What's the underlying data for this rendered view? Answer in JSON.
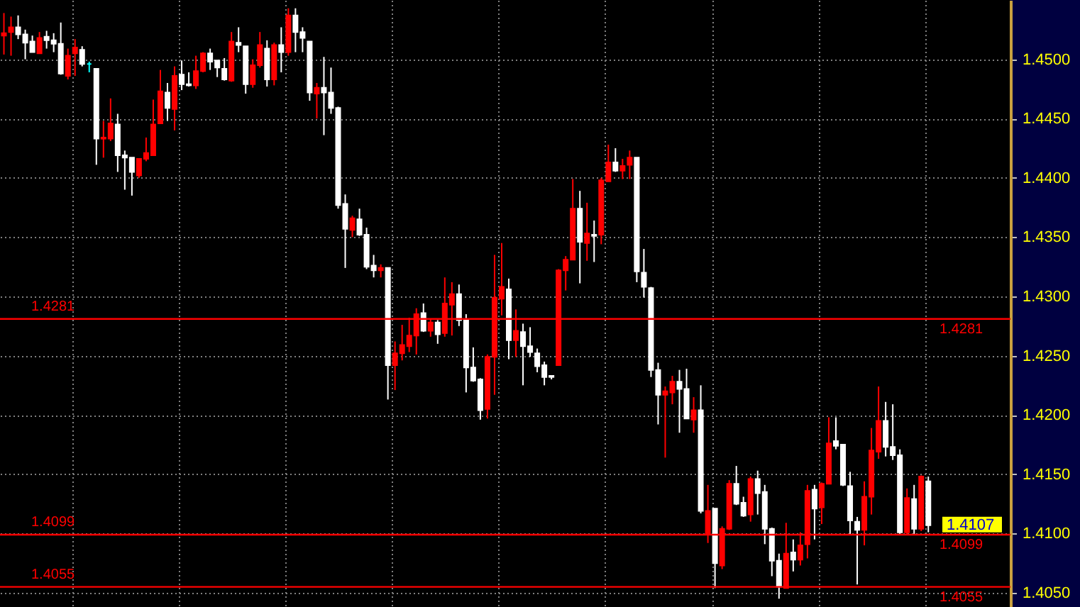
{
  "chart_data": {
    "type": "candlestick",
    "categories": [
      null,
      null,
      null,
      null,
      null,
      null,
      null,
      null,
      null,
      null,
      null,
      null,
      null,
      null,
      null,
      null,
      null,
      null,
      null,
      null,
      null,
      null,
      null,
      null,
      null,
      null,
      null,
      null,
      null,
      null,
      null,
      null,
      null,
      null,
      null,
      null,
      null,
      null,
      null,
      null,
      null,
      null,
      null,
      null,
      null,
      null,
      null,
      null,
      null,
      null,
      null,
      null,
      null,
      null,
      null,
      null,
      null,
      null,
      null,
      null,
      null,
      null,
      null,
      null,
      null,
      null,
      null,
      null,
      null,
      null,
      null,
      null,
      null,
      null,
      null,
      null,
      null,
      null,
      null,
      null,
      null,
      null,
      null,
      null,
      null,
      null,
      null,
      null,
      null,
      null,
      null,
      null,
      null,
      null,
      null,
      null,
      null,
      null,
      null,
      null,
      null,
      null,
      null,
      null,
      null,
      null,
      null,
      null,
      null,
      null,
      null,
      null,
      null,
      null,
      null,
      null,
      null,
      null,
      null,
      null,
      null,
      null,
      null,
      null,
      null,
      null,
      null,
      null,
      null,
      null,
      null,
      null,
      null,
      null,
      null,
      null,
      null,
      null,
      null,
      null,
      null,
      null
    ],
    "ohlc": [
      [
        1.452,
        1.4539,
        1.4504,
        1.4522
      ],
      [
        1.4523,
        1.4536,
        1.4503,
        1.4527
      ],
      [
        1.4527,
        1.4537,
        1.4517,
        1.4521
      ],
      [
        1.4521,
        1.4525,
        1.45,
        1.4514
      ],
      [
        1.4515,
        1.452,
        1.4506,
        1.4506
      ],
      [
        1.4505,
        1.4523,
        1.4505,
        1.4518
      ],
      [
        1.4519,
        1.4524,
        1.4509,
        1.4516
      ],
      [
        1.4516,
        1.4522,
        1.4506,
        1.4513
      ],
      [
        1.4513,
        1.4531,
        1.4487,
        1.4488
      ],
      [
        1.4486,
        1.4509,
        1.4483,
        1.4503
      ],
      [
        1.4505,
        1.4517,
        1.4486,
        1.451
      ],
      [
        1.4508,
        1.4511,
        1.4494,
        1.4496
      ],
      [
        1.4496,
        1.4498,
        1.4489,
        1.4496
      ],
      [
        1.4492,
        1.4492,
        1.4411,
        1.4433
      ],
      [
        1.4433,
        1.4448,
        1.4417,
        1.4434
      ],
      [
        1.4433,
        1.4467,
        1.4431,
        1.4446
      ],
      [
        1.4445,
        1.4454,
        1.4405,
        1.4419
      ],
      [
        1.4419,
        1.4423,
        1.439,
        1.4417
      ],
      [
        1.4417,
        1.4417,
        1.4385,
        1.4405
      ],
      [
        1.4402,
        1.4416,
        1.44,
        1.4416
      ],
      [
        1.4416,
        1.4434,
        1.4414,
        1.4421
      ],
      [
        1.4419,
        1.4466,
        1.4419,
        1.4445
      ],
      [
        1.4446,
        1.4491,
        1.4446,
        1.4473
      ],
      [
        1.4472,
        1.448,
        1.4448,
        1.4459
      ],
      [
        1.4458,
        1.4494,
        1.444,
        1.4486
      ],
      [
        1.4487,
        1.4499,
        1.4474,
        1.4479
      ],
      [
        1.4479,
        1.4489,
        1.4477,
        1.4478
      ],
      [
        1.4478,
        1.4503,
        1.4475,
        1.449
      ],
      [
        1.449,
        1.4506,
        1.4489,
        1.4505
      ],
      [
        1.4505,
        1.4509,
        1.4491,
        1.4498
      ],
      [
        1.4499,
        1.4499,
        1.4485,
        1.4493
      ],
      [
        1.4492,
        1.4501,
        1.4482,
        1.4483
      ],
      [
        1.4482,
        1.4523,
        1.4481,
        1.4515
      ],
      [
        1.4514,
        1.4527,
        1.4506,
        1.4512
      ],
      [
        1.4511,
        1.4511,
        1.4471,
        1.4479
      ],
      [
        1.4479,
        1.45,
        1.4476,
        1.4495
      ],
      [
        1.4495,
        1.4523,
        1.4493,
        1.4512
      ],
      [
        1.4509,
        1.4516,
        1.4477,
        1.4483
      ],
      [
        1.4483,
        1.4514,
        1.4478,
        1.4512
      ],
      [
        1.4512,
        1.4527,
        1.4489,
        1.4506
      ],
      [
        1.4506,
        1.4543,
        1.4503,
        1.4537
      ],
      [
        1.4537,
        1.4543,
        1.4506,
        1.4523
      ],
      [
        1.4523,
        1.4527,
        1.4506,
        1.4518
      ],
      [
        1.4515,
        1.4515,
        1.4465,
        1.4472
      ],
      [
        1.4471,
        1.448,
        1.445,
        1.4476
      ],
      [
        1.4476,
        1.4502,
        1.4436,
        1.4472
      ],
      [
        1.4472,
        1.4493,
        1.4454,
        1.4459
      ],
      [
        1.4459,
        1.446,
        1.4374,
        1.4377
      ],
      [
        1.4378,
        1.4386,
        1.4324,
        1.4357
      ],
      [
        1.4356,
        1.4368,
        1.435,
        1.4366
      ],
      [
        1.4365,
        1.4374,
        1.4351,
        1.4352
      ],
      [
        1.4352,
        1.4358,
        1.4323,
        1.4325
      ],
      [
        1.4326,
        1.4335,
        1.4316,
        1.4322
      ],
      [
        1.4322,
        1.4327,
        1.4316,
        1.4324
      ],
      [
        1.4324,
        1.4324,
        1.4213,
        1.4242
      ],
      [
        1.4242,
        1.4262,
        1.4221,
        1.4252
      ],
      [
        1.4252,
        1.4276,
        1.4246,
        1.4259
      ],
      [
        1.4258,
        1.4282,
        1.4253,
        1.4267
      ],
      [
        1.4267,
        1.429,
        1.4251,
        1.4285
      ],
      [
        1.4286,
        1.4294,
        1.427,
        1.4271
      ],
      [
        1.4271,
        1.4281,
        1.4266,
        1.4278
      ],
      [
        1.4278,
        1.428,
        1.426,
        1.4268
      ],
      [
        1.4269,
        1.4316,
        1.4266,
        1.4294
      ],
      [
        1.4293,
        1.4312,
        1.4267,
        1.4302
      ],
      [
        1.4302,
        1.431,
        1.4275,
        1.428
      ],
      [
        1.428,
        1.4285,
        1.4219,
        1.424
      ],
      [
        1.424,
        1.4257,
        1.4228,
        1.4229
      ],
      [
        1.423,
        1.4231,
        1.4196,
        1.4204
      ],
      [
        1.4205,
        1.4251,
        1.4197,
        1.4249
      ],
      [
        1.4249,
        1.4335,
        1.4217,
        1.4299
      ],
      [
        1.4298,
        1.4345,
        1.4284,
        1.4308
      ],
      [
        1.4306,
        1.4315,
        1.4247,
        1.4263
      ],
      [
        1.4263,
        1.4289,
        1.4249,
        1.4271
      ],
      [
        1.427,
        1.4277,
        1.4225,
        1.4258
      ],
      [
        1.4258,
        1.4274,
        1.4249,
        1.4253
      ],
      [
        1.4252,
        1.4256,
        1.4236,
        1.4241
      ],
      [
        1.4242,
        1.4245,
        1.4225,
        1.4232
      ],
      [
        1.4233,
        1.4233,
        1.423,
        1.4232
      ],
      [
        1.4242,
        1.4323,
        1.4242,
        1.4322
      ],
      [
        1.4322,
        1.4334,
        1.4305,
        1.4331
      ],
      [
        1.4331,
        1.4399,
        1.4331,
        1.4374
      ],
      [
        1.4374,
        1.4389,
        1.4311,
        1.4346
      ],
      [
        1.4345,
        1.4379,
        1.433,
        1.4353
      ],
      [
        1.4352,
        1.4364,
        1.4329,
        1.4351
      ],
      [
        1.4352,
        1.44,
        1.4344,
        1.4398
      ],
      [
        1.4397,
        1.4428,
        1.4397,
        1.4413
      ],
      [
        1.4413,
        1.4425,
        1.4405,
        1.4406
      ],
      [
        1.4406,
        1.4416,
        1.4399,
        1.441
      ],
      [
        1.4411,
        1.4423,
        1.4399,
        1.4417
      ],
      [
        1.4417,
        1.4417,
        1.4312,
        1.4321
      ],
      [
        1.432,
        1.434,
        1.4299,
        1.4308
      ],
      [
        1.4307,
        1.4308,
        1.4232,
        1.4238
      ],
      [
        1.4238,
        1.4244,
        1.4192,
        1.4217
      ],
      [
        1.4217,
        1.4224,
        1.4164,
        1.422
      ],
      [
        1.4219,
        1.4233,
        1.4209,
        1.4228
      ],
      [
        1.4228,
        1.4238,
        1.4185,
        1.4222
      ],
      [
        1.4222,
        1.4239,
        1.4197,
        1.4197
      ],
      [
        1.4196,
        1.4215,
        1.4185,
        1.4204
      ],
      [
        1.4204,
        1.4225,
        1.4117,
        1.4119
      ],
      [
        1.4099,
        1.4141,
        1.4092,
        1.4119
      ],
      [
        1.4121,
        1.4121,
        1.4054,
        1.4075
      ],
      [
        1.4073,
        1.4106,
        1.407,
        1.4104
      ],
      [
        1.4104,
        1.4145,
        1.4103,
        1.4142
      ],
      [
        1.4142,
        1.4157,
        1.4124,
        1.4125
      ],
      [
        1.4126,
        1.4131,
        1.4114,
        1.4115
      ],
      [
        1.4116,
        1.4148,
        1.411,
        1.4146
      ],
      [
        1.4146,
        1.4153,
        1.4116,
        1.4134
      ],
      [
        1.4135,
        1.4141,
        1.4091,
        1.4104
      ],
      [
        1.4104,
        1.4105,
        1.4064,
        1.4077
      ],
      [
        1.4077,
        1.4083,
        1.4045,
        1.4055
      ],
      [
        1.4054,
        1.4109,
        1.4054,
        1.4083
      ],
      [
        1.4084,
        1.4095,
        1.4068,
        1.4078
      ],
      [
        1.4078,
        1.4101,
        1.4073,
        1.409
      ],
      [
        1.4091,
        1.4141,
        1.4079,
        1.4136
      ],
      [
        1.4137,
        1.4141,
        1.4095,
        1.4121
      ],
      [
        1.4122,
        1.4143,
        1.4108,
        1.4142
      ],
      [
        1.4142,
        1.4198,
        1.4142,
        1.4176
      ],
      [
        1.4178,
        1.4198,
        1.4171,
        1.4174
      ],
      [
        1.4175,
        1.4175,
        1.414,
        1.4141
      ],
      [
        1.414,
        1.4152,
        1.4099,
        1.4111
      ],
      [
        1.411,
        1.4114,
        1.4057,
        1.4103
      ],
      [
        1.4103,
        1.4144,
        1.409,
        1.4131
      ],
      [
        1.4131,
        1.4189,
        1.4116,
        1.417
      ],
      [
        1.4169,
        1.4224,
        1.4163,
        1.4195
      ],
      [
        1.4195,
        1.4211,
        1.4165,
        1.4173
      ],
      [
        1.4173,
        1.4209,
        1.4162,
        1.4166
      ],
      [
        1.4166,
        1.4171,
        1.4099,
        1.4101
      ],
      [
        1.4101,
        1.4138,
        1.4099,
        1.413
      ],
      [
        1.4129,
        1.4141,
        1.4099,
        1.4104
      ],
      [
        1.4104,
        1.4149,
        1.4102,
        1.4148
      ],
      [
        1.4144,
        1.4148,
        1.4101,
        1.4107
      ],
      null,
      null,
      null,
      null,
      null,
      null,
      null,
      null,
      null,
      null,
      null
    ],
    "colors": [
      "#ff0000",
      "#ff0000",
      "#ffffff",
      "#ffffff",
      "#ffffff",
      "#ff0000",
      "#ffffff",
      "#ffffff",
      "#ffffff",
      "#ff0000",
      "#ff0000",
      "#ffffff",
      "#00ffff",
      "#ffffff",
      "#ff0000",
      "#ff0000",
      "#ffffff",
      "#ffffff",
      "#ffffff",
      "#ff0000",
      "#ff0000",
      "#ff0000",
      "#ff0000",
      "#ffffff",
      "#ff0000",
      "#ffffff",
      "#ffffff",
      "#ff0000",
      "#ff0000",
      "#ffffff",
      "#ffffff",
      "#ffffff",
      "#ff0000",
      "#ffffff",
      "#ffffff",
      "#ff0000",
      "#ff0000",
      "#ffffff",
      "#ff0000",
      "#ffffff",
      "#ff0000",
      "#ffffff",
      "#ffffff",
      "#ffffff",
      "#ff0000",
      "#ffffff",
      "#ffffff",
      "#ffffff",
      "#ffffff",
      "#ff0000",
      "#ffffff",
      "#ffffff",
      "#ffffff",
      "#ff0000",
      "#ffffff",
      "#ff0000",
      "#ff0000",
      "#ff0000",
      "#ff0000",
      "#ffffff",
      "#ff0000",
      "#ffffff",
      "#ff0000",
      "#ff0000",
      "#ffffff",
      "#ffffff",
      "#ffffff",
      "#ffffff",
      "#ff0000",
      "#ff0000",
      "#ff0000",
      "#ffffff",
      "#ff0000",
      "#ffffff",
      "#ffffff",
      "#ffffff",
      "#ffffff",
      "#ffffff",
      "#ff0000",
      "#ff0000",
      "#ff0000",
      "#ffffff",
      "#ff0000",
      "#ffffff",
      "#ff0000",
      "#ff0000",
      "#ffffff",
      "#ff0000",
      "#ff0000",
      "#ffffff",
      "#ffffff",
      "#ffffff",
      "#ffffff",
      "#ff0000",
      "#ff0000",
      "#ffffff",
      "#ffffff",
      "#ff0000",
      "#ffffff",
      "#ff0000",
      "#ffffff",
      "#ff0000",
      "#ff0000",
      "#ffffff",
      "#ffffff",
      "#ff0000",
      "#ffffff",
      "#ffffff",
      "#ffffff",
      "#ffffff",
      "#ff0000",
      "#ffffff",
      "#ff0000",
      "#ff0000",
      "#ffffff",
      "#ff0000",
      "#ff0000",
      "#ffffff",
      "#ffffff",
      "#ffffff",
      "#ffffff",
      "#ff0000",
      "#ff0000",
      "#ff0000",
      "#ffffff",
      "#ffffff",
      "#ffffff",
      "#ff0000",
      "#ffffff",
      "#ff0000",
      "#ffffff",
      null,
      null,
      null,
      null,
      null,
      null,
      null,
      null,
      null,
      null,
      null
    ],
    "ylim": [
      1.4038,
      1.455
    ],
    "yticks": [
      {
        "value": 1.405,
        "label": "1.4050"
      },
      {
        "value": 1.41,
        "label": "1.4100"
      },
      {
        "value": 1.415,
        "label": "1.4150"
      },
      {
        "value": 1.42,
        "label": "1.4200"
      },
      {
        "value": 1.425,
        "label": "1.4250"
      },
      {
        "value": 1.43,
        "label": "1.4300"
      },
      {
        "value": 1.435,
        "label": "1.4350"
      },
      {
        "value": 1.44,
        "label": "1.4400"
      },
      {
        "value": 1.445,
        "label": "1.4450"
      },
      {
        "value": 1.45,
        "label": "1.4500"
      }
    ],
    "grid": true,
    "ref_lines": [
      {
        "axis": "y",
        "value": 1.4281,
        "label": "1.4281",
        "color": "#ff0000"
      },
      {
        "axis": "y",
        "value": 1.4099,
        "label": "1.4099",
        "color": "#ff0000"
      },
      {
        "axis": "y",
        "value": 1.4055,
        "label": "1.4055",
        "color": "#ff0000"
      }
    ],
    "annotations": [
      "1.4107"
    ]
  }
}
